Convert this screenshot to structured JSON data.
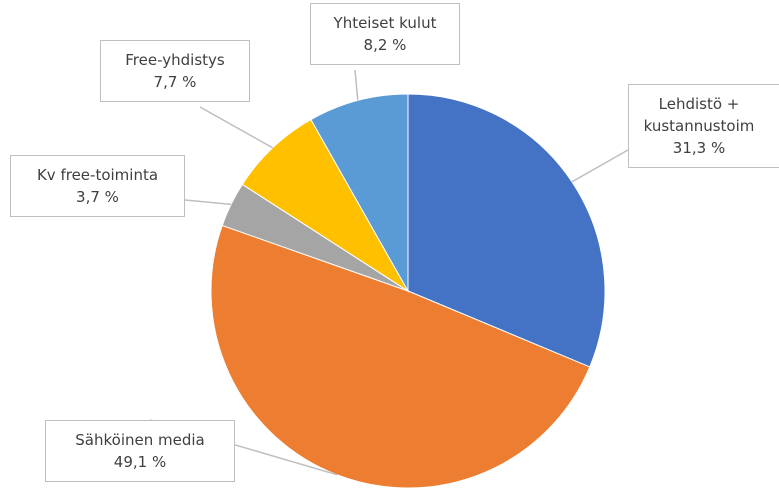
{
  "chart_data": {
    "type": "pie",
    "categories": [
      "Lehdistö + kustannustoim",
      "Sähköinen media",
      "Kv free-toiminta",
      "Free-yhdistys",
      "Yhteiset kulut"
    ],
    "values": [
      31.3,
      49.1,
      3.7,
      7.7,
      8.2
    ],
    "value_labels": [
      "31,3 %",
      "49,1 %",
      "3,7 %",
      "7,7 %",
      "8,2 %"
    ],
    "colors": [
      "#4472c4",
      "#ed7d31",
      "#a5a5a5",
      "#ffc000",
      "#5b9bd5"
    ]
  }
}
